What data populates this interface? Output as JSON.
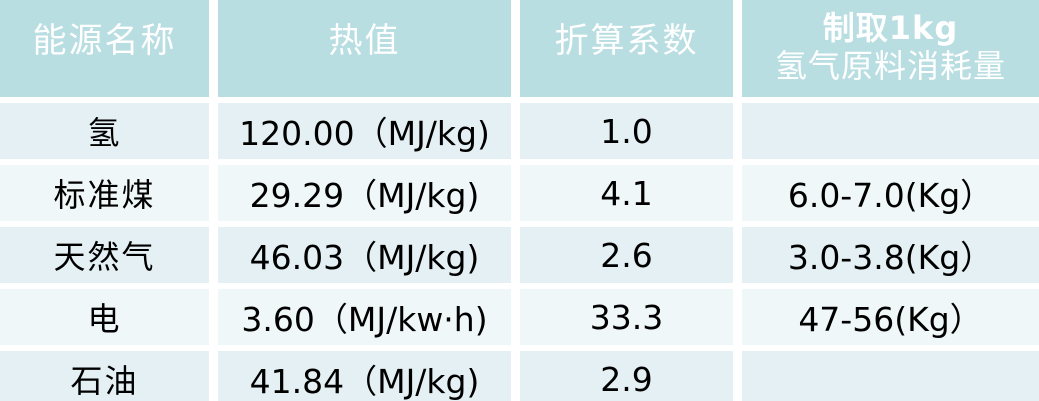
{
  "colors": {
    "header_bg": "#b9dee2",
    "row_odd_bg": "#e4f0f3",
    "row_even_bg": "#f0f7f9",
    "gap_color": "#ffffff",
    "header_text": "#ffffff",
    "body_text": "#000000"
  },
  "table": {
    "columns": [
      {
        "label": "能源名称"
      },
      {
        "label": "热值"
      },
      {
        "label": "折算系数"
      },
      {
        "label_line1": "制取1kg",
        "label_line2": "氢气原料消耗量"
      }
    ],
    "rows": [
      {
        "name": "氢",
        "heat_value": "120.00（MJ/kg)",
        "coefficient": "1.0",
        "consumption": ""
      },
      {
        "name": "标准煤",
        "heat_value": "29.29（MJ/kg)",
        "coefficient": "4.1",
        "consumption": "6.0-7.0(Kg）"
      },
      {
        "name": "天然气",
        "heat_value": "46.03（MJ/kg)",
        "coefficient": "2.6",
        "consumption": "3.0-3.8(Kg）"
      },
      {
        "name": "电",
        "heat_value": "3.60（MJ/kw·h)",
        "coefficient": "33.3",
        "consumption": "47-56(Kg）"
      },
      {
        "name": "石油",
        "heat_value": "41.84（MJ/kg)",
        "coefficient": "2.9",
        "consumption": ""
      }
    ]
  }
}
